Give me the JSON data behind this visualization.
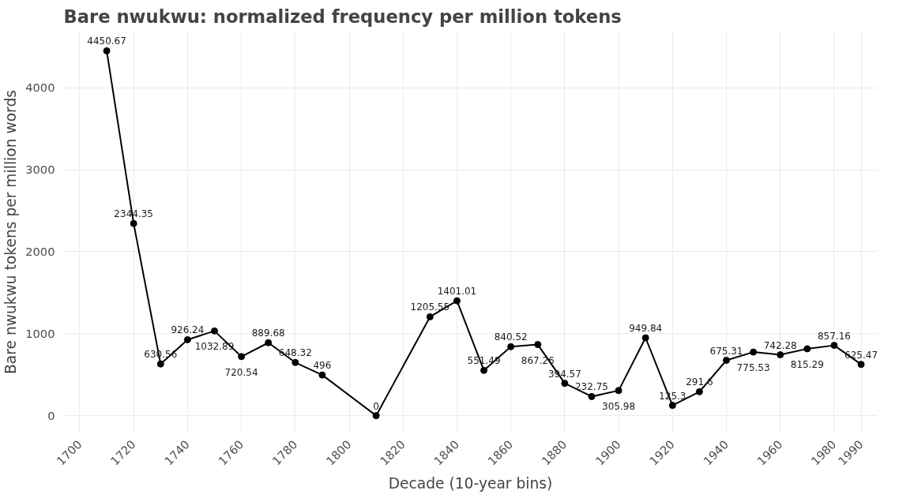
{
  "chart_data": {
    "type": "line",
    "title": "Bare nwukwu: normalized frequency per million tokens",
    "xlabel": "Decade (10-year bins)",
    "ylabel": "Bare nwukwu tokens per million words",
    "x": [
      1710,
      1720,
      1730,
      1740,
      1750,
      1760,
      1770,
      1780,
      1790,
      1810,
      1830,
      1840,
      1850,
      1860,
      1870,
      1880,
      1890,
      1900,
      1910,
      1920,
      1930,
      1940,
      1950,
      1960,
      1970,
      1980,
      1990
    ],
    "series": [
      {
        "color": "#000000",
        "values": [
          4450.67,
          2344.35,
          630.56,
          926.24,
          1032.89,
          720.54,
          889.68,
          648.32,
          496,
          0,
          1205.55,
          1401.01,
          551.49,
          840.52,
          867.26,
          394.57,
          232.75,
          305.98,
          949.84,
          125.3,
          291.6,
          675.31,
          775.53,
          742.28,
          815.29,
          857.16,
          625.47
        ]
      }
    ],
    "xlim": [
      1694,
      1996
    ],
    "ylim": [
      -220,
      4700
    ],
    "xticks": [
      1700,
      1720,
      1740,
      1760,
      1780,
      1800,
      1820,
      1840,
      1860,
      1880,
      1900,
      1920,
      1940,
      1960,
      1980,
      1990
    ],
    "yticks": [
      0,
      1000,
      2000,
      3000,
      4000
    ],
    "grid": true,
    "marker": "circle",
    "line_style": "solid",
    "data_labels": true
  }
}
